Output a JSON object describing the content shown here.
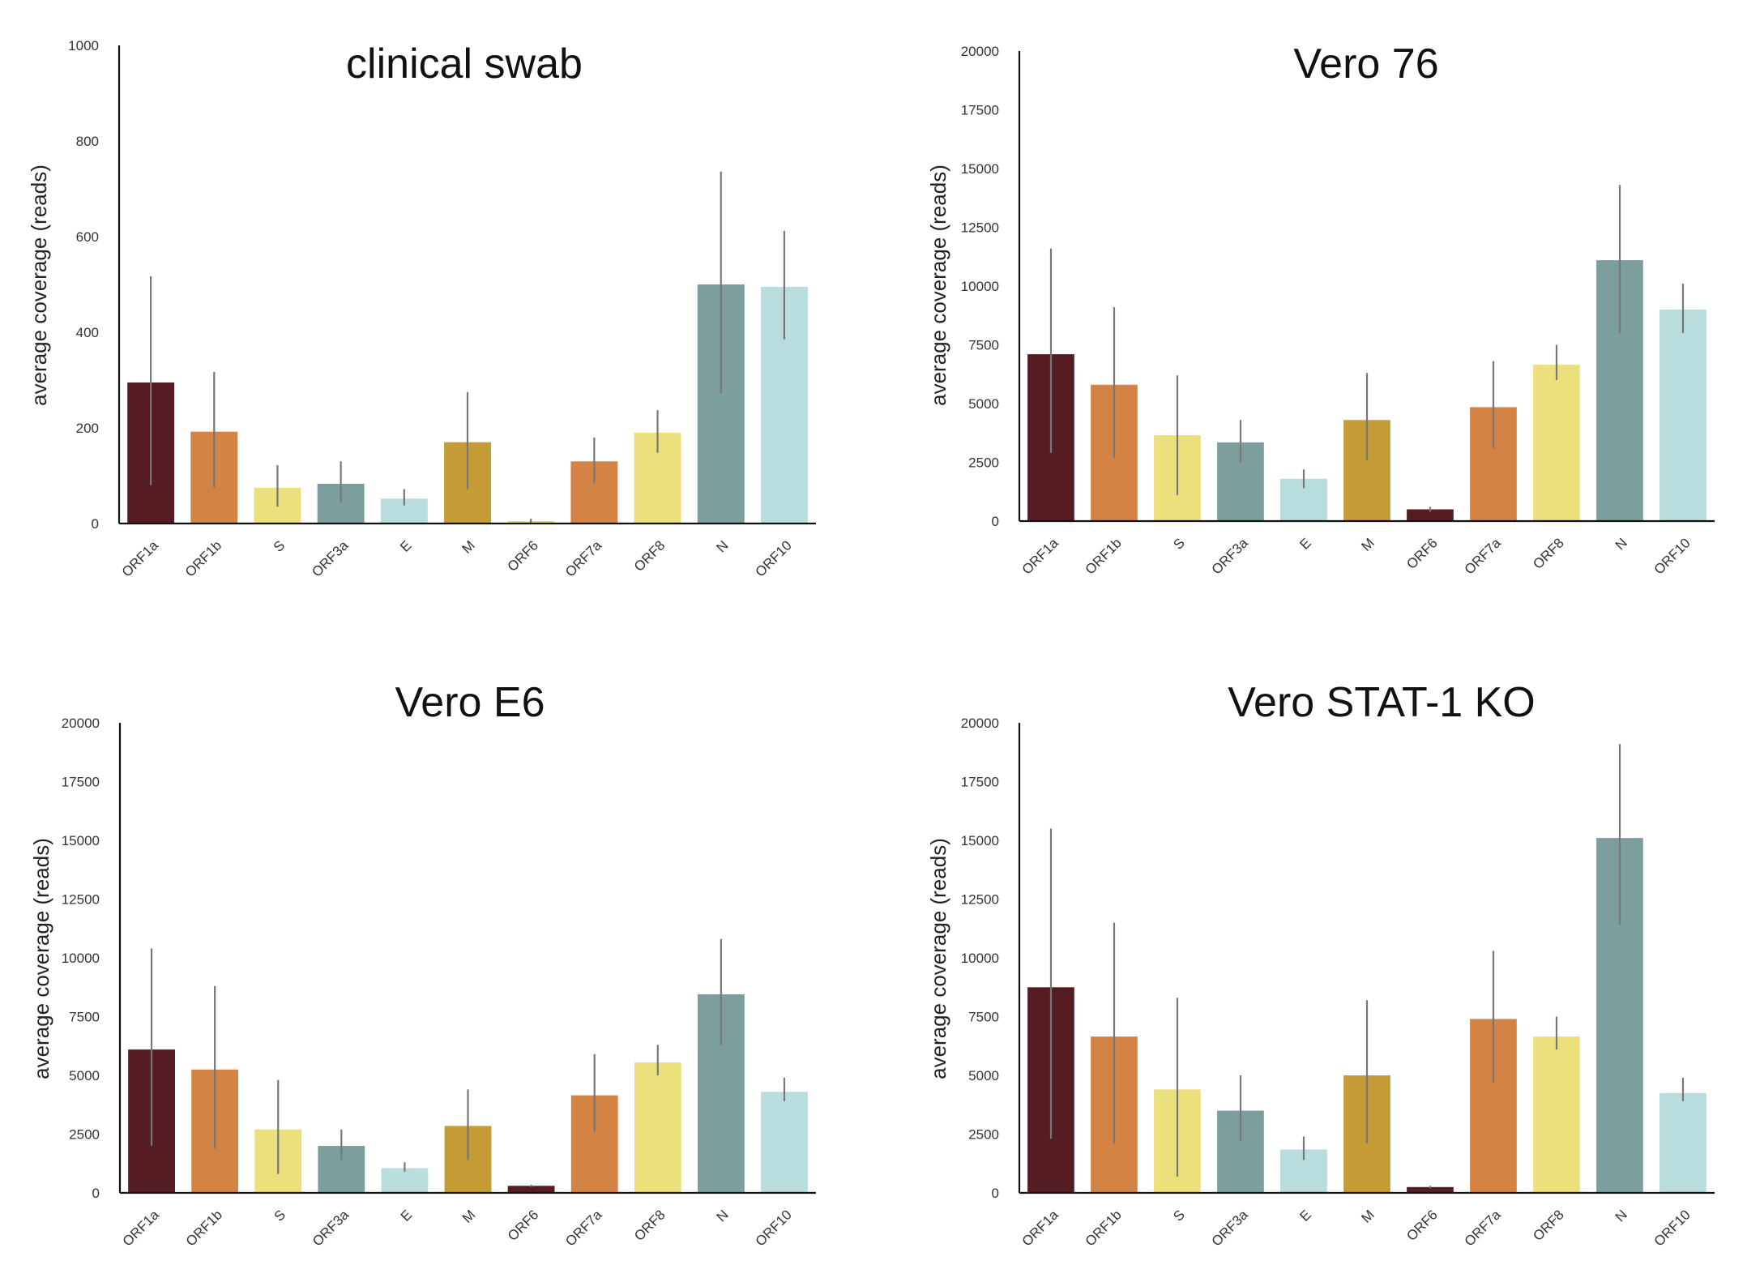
{
  "chart_data": [
    {
      "type": "bar",
      "title": "clinical swab",
      "ylabel": "average coverage (reads)",
      "ylim": [
        0,
        1000
      ],
      "yticks": [
        0,
        200,
        400,
        600,
        800,
        1000
      ],
      "categories": [
        "ORF1a",
        "ORF1b",
        "S",
        "ORF3a",
        "E",
        "M",
        "ORF6",
        "ORF7a",
        "ORF8",
        "N",
        "ORF10"
      ],
      "values": [
        295,
        192,
        75,
        83,
        52,
        170,
        5,
        130,
        190,
        500,
        495
      ],
      "err_low": [
        80,
        75,
        35,
        45,
        38,
        72,
        0,
        85,
        148,
        272,
        385
      ],
      "err_high": [
        517,
        317,
        122,
        130,
        72,
        275,
        10,
        180,
        237,
        736,
        612
      ],
      "colors": [
        "#561c24",
        "#d38444",
        "#ebe07b",
        "#7c9f9e",
        "#b9dcdd",
        "#c59b35",
        "#ebe07b",
        "#d38444",
        "#ebe07b",
        "#7c9f9e",
        "#b9dcdd"
      ]
    },
    {
      "type": "bar",
      "title": "Vero 76",
      "ylabel": "average coverage (reads)",
      "ylim": [
        0,
        20000
      ],
      "yticks": [
        0,
        2500,
        5000,
        7500,
        10000,
        12500,
        15000,
        17500,
        20000
      ],
      "categories": [
        "ORF1a",
        "ORF1b",
        "S",
        "ORF3a",
        "E",
        "M",
        "ORF6",
        "ORF7a",
        "ORF8",
        "N",
        "ORF10"
      ],
      "values": [
        7100,
        5800,
        3650,
        3350,
        1800,
        4300,
        500,
        4850,
        6650,
        11100,
        9000
      ],
      "err_low": [
        2900,
        2700,
        1100,
        2500,
        1400,
        2600,
        400,
        3100,
        6000,
        8000,
        8000
      ],
      "err_high": [
        11600,
        9100,
        6200,
        4300,
        2200,
        6300,
        600,
        6800,
        7500,
        14300,
        10100
      ],
      "colors": [
        "#561c24",
        "#d38444",
        "#ebe07b",
        "#7c9f9e",
        "#b9dcdd",
        "#c59b35",
        "#561c24",
        "#d38444",
        "#ebe07b",
        "#7c9f9e",
        "#b9dcdd"
      ]
    },
    {
      "type": "bar",
      "title": "Vero E6",
      "ylabel": "average coverage (reads)",
      "ylim": [
        0,
        20000
      ],
      "yticks": [
        0,
        2500,
        5000,
        7500,
        10000,
        12500,
        15000,
        17500,
        20000
      ],
      "categories": [
        "ORF1a",
        "ORF1b",
        "S",
        "ORF3a",
        "E",
        "M",
        "ORF6",
        "ORF7a",
        "ORF8",
        "N",
        "ORF10"
      ],
      "values": [
        6100,
        5250,
        2700,
        2000,
        1050,
        2850,
        300,
        4150,
        5550,
        8450,
        4300
      ],
      "err_low": [
        2000,
        1900,
        800,
        1400,
        900,
        1400,
        250,
        2600,
        5000,
        6300,
        3900
      ],
      "err_high": [
        10400,
        8800,
        4800,
        2700,
        1300,
        4400,
        350,
        5900,
        6300,
        10800,
        4900
      ],
      "colors": [
        "#561c24",
        "#d38444",
        "#ebe07b",
        "#7c9f9e",
        "#b9dcdd",
        "#c59b35",
        "#561c24",
        "#d38444",
        "#ebe07b",
        "#7c9f9e",
        "#b9dcdd"
      ]
    },
    {
      "type": "bar",
      "title": "Vero STAT-1 KO",
      "ylabel": "average coverage (reads)",
      "ylim": [
        0,
        20000
      ],
      "yticks": [
        0,
        2500,
        5000,
        7500,
        10000,
        12500,
        15000,
        17500,
        20000
      ],
      "categories": [
        "ORF1a",
        "ORF1b",
        "S",
        "ORF3a",
        "E",
        "M",
        "ORF6",
        "ORF7a",
        "ORF8",
        "N",
        "ORF10"
      ],
      "values": [
        8750,
        6650,
        4400,
        3500,
        1850,
        5000,
        250,
        7400,
        6650,
        15100,
        4250
      ],
      "err_low": [
        2300,
        2100,
        700,
        2200,
        1400,
        2100,
        200,
        4700,
        6100,
        11400,
        3900
      ],
      "err_high": [
        15500,
        11500,
        8300,
        5000,
        2400,
        8200,
        300,
        10300,
        7500,
        19100,
        4900
      ],
      "colors": [
        "#561c24",
        "#d38444",
        "#ebe07b",
        "#7c9f9e",
        "#b9dcdd",
        "#c59b35",
        "#561c24",
        "#d38444",
        "#ebe07b",
        "#7c9f9e",
        "#b9dcdd"
      ]
    }
  ]
}
